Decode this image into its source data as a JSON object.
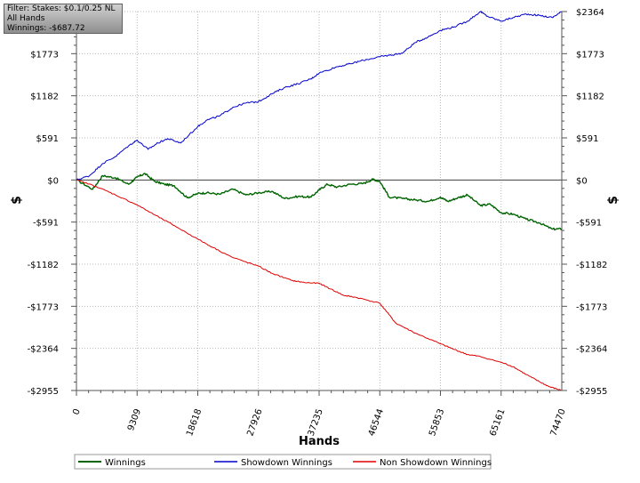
{
  "info_box": {
    "filter": "Filter: Stakes: $0.1/0.25 NL",
    "hands": "All Hands",
    "winnings": "Winnings: -$687.72"
  },
  "colors": {
    "winnings": "#006400",
    "showdown": "#0000cc",
    "non_showdown": "#e00000",
    "zero_line": "#404040",
    "grid": "#b8b8b8"
  },
  "chart_data": {
    "type": "line",
    "title": "",
    "xlabel": "Hands",
    "ylabel": "$",
    "xlim": [
      0,
      74470
    ],
    "ylim": [
      -2955,
      2364
    ],
    "x_ticks": [
      0,
      9309,
      18618,
      27926,
      37235,
      46544,
      55853,
      65161,
      74470
    ],
    "x_tick_labels": [
      "0",
      "9309",
      "18618",
      "27926",
      "37235",
      "46544",
      "55853",
      "65161",
      "74470"
    ],
    "y_ticks": [
      2364,
      1773,
      1182,
      591,
      0,
      -591,
      -1182,
      -1773,
      -2364,
      -2955
    ],
    "y_tick_labels": [
      "$2364",
      "$1773",
      "$1182",
      "$591",
      "$0",
      "-$591",
      "-$1182",
      "-$1773",
      "-$2364",
      "-$2955"
    ],
    "legend_position": "bottom",
    "series": [
      {
        "name": "Winnings",
        "color": "#006400",
        "x": [
          0,
          2500,
          4000,
          6000,
          8000,
          9309,
          10500,
          12000,
          13500,
          15000,
          17000,
          18618,
          20000,
          22000,
          24000,
          26000,
          27926,
          30000,
          32000,
          34000,
          36000,
          37235,
          38500,
          40000,
          42000,
          44000,
          45500,
          46544,
          48000,
          50000,
          52000,
          54000,
          55853,
          57000,
          58500,
          60000,
          62000,
          63500,
          65161,
          67000,
          69000,
          71000,
          73000,
          74470
        ],
        "y": [
          0,
          -130,
          60,
          30,
          -60,
          40,
          90,
          -20,
          -60,
          -80,
          -250,
          -190,
          -180,
          -200,
          -130,
          -210,
          -180,
          -160,
          -260,
          -230,
          -240,
          -140,
          -60,
          -100,
          -60,
          -50,
          10,
          -20,
          -240,
          -260,
          -280,
          -300,
          -240,
          -300,
          -250,
          -210,
          -360,
          -340,
          -460,
          -480,
          -550,
          -600,
          -690,
          -688
        ]
      },
      {
        "name": "Showdown Winnings",
        "color": "#0000cc",
        "x": [
          0,
          2000,
          4000,
          6000,
          8000,
          9309,
          11000,
          12500,
          14000,
          16000,
          18618,
          20000,
          22000,
          24000,
          26000,
          27926,
          30000,
          32000,
          34000,
          36000,
          37235,
          40000,
          42000,
          44000,
          46544,
          48000,
          50000,
          52000,
          54000,
          55853,
          58000,
          60000,
          62000,
          63000,
          65161,
          67000,
          69000,
          71000,
          73000,
          74470
        ],
        "y": [
          0,
          60,
          230,
          330,
          480,
          560,
          430,
          520,
          580,
          520,
          750,
          840,
          900,
          1020,
          1080,
          1100,
          1210,
          1300,
          1350,
          1420,
          1500,
          1590,
          1630,
          1680,
          1730,
          1750,
          1780,
          1930,
          2010,
          2100,
          2150,
          2230,
          2364,
          2300,
          2230,
          2280,
          2330,
          2310,
          2280,
          2364
        ]
      },
      {
        "name": "Non Showdown Winnings",
        "color": "#e00000",
        "x": [
          0,
          3000,
          6000,
          9309,
          12000,
          15000,
          18618,
          21000,
          24000,
          27926,
          30000,
          33000,
          35000,
          37235,
          39000,
          41000,
          43000,
          46544,
          49000,
          52000,
          55853,
          58000,
          60000,
          62000,
          65161,
          67000,
          69000,
          71000,
          72500,
          74470
        ],
        "y": [
          0,
          -90,
          -210,
          -350,
          -490,
          -640,
          -830,
          -950,
          -1090,
          -1210,
          -1310,
          -1410,
          -1440,
          -1450,
          -1530,
          -1620,
          -1650,
          -1730,
          -2010,
          -2150,
          -2300,
          -2380,
          -2450,
          -2480,
          -2560,
          -2620,
          -2730,
          -2830,
          -2900,
          -2955
        ]
      }
    ]
  }
}
